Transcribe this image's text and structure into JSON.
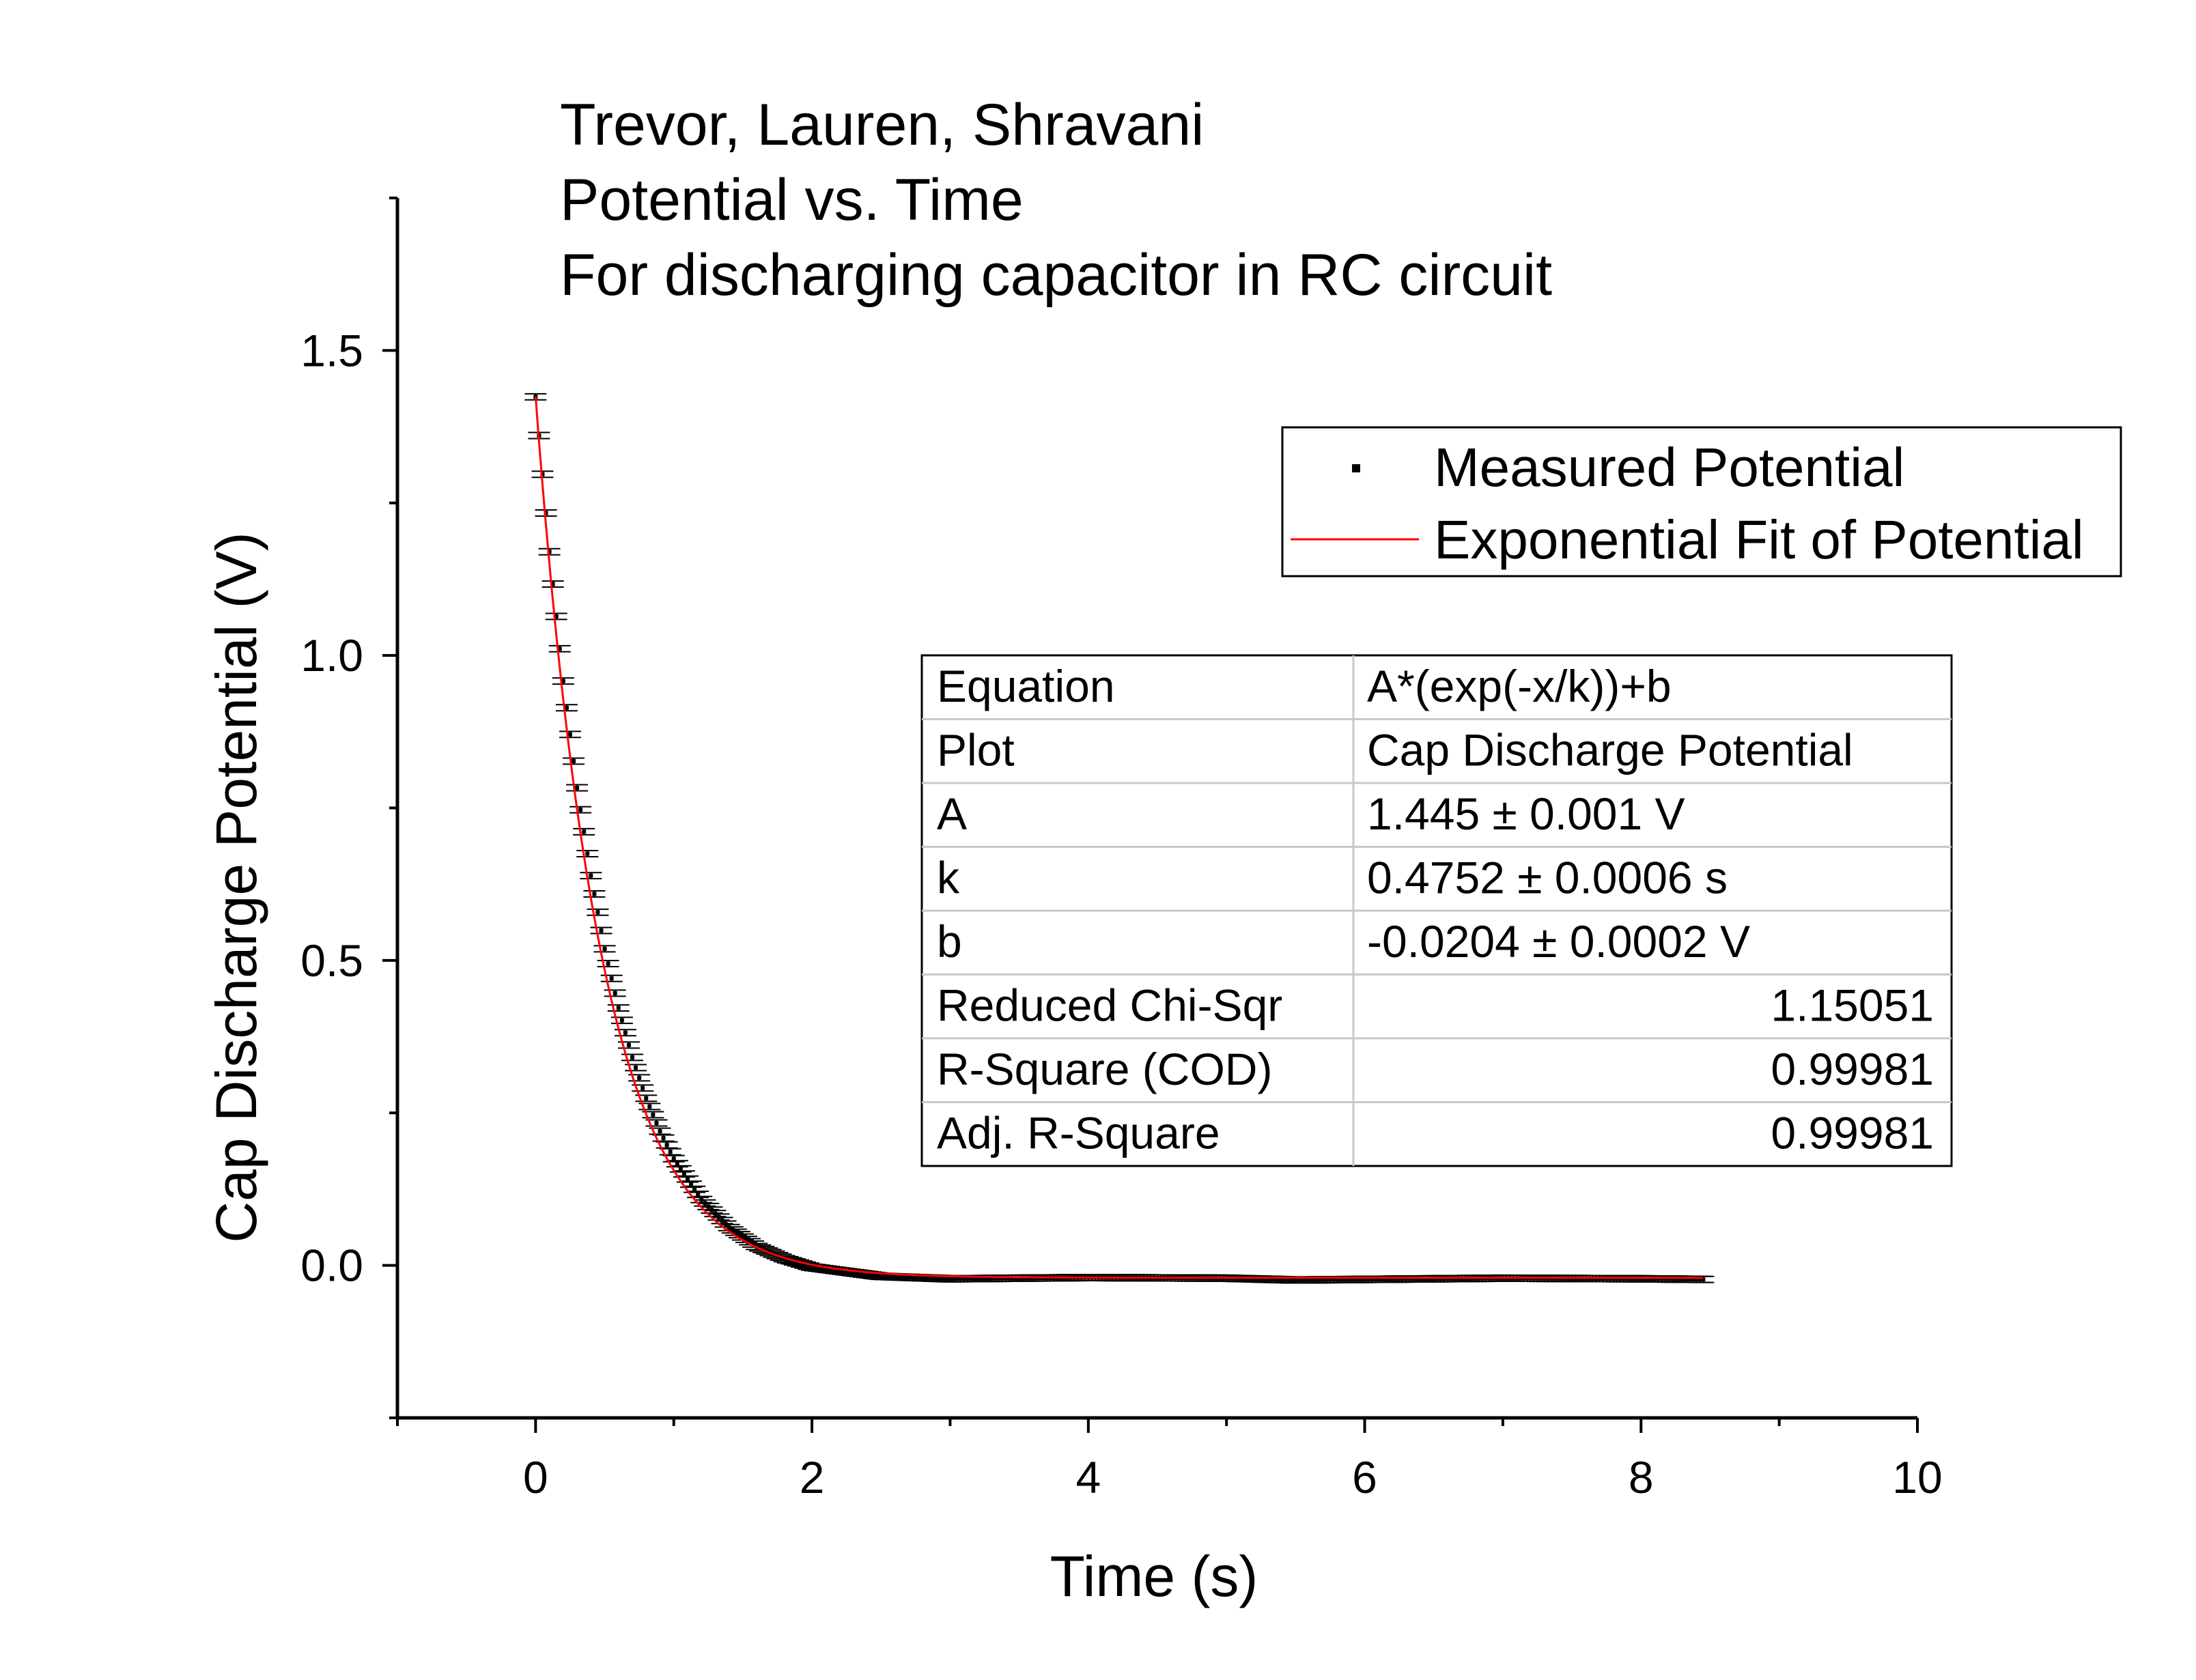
{
  "chart_data": {
    "type": "scatter",
    "title_lines": [
      "Trevor, Lauren, Shravani",
      "Potential vs. Time",
      "For discharging capacitor in RC circuit"
    ],
    "xlabel": "Time (s)",
    "ylabel": "Cap Discharge Potential (V)",
    "xlim": [
      -1,
      10
    ],
    "ylim": [
      -0.25,
      1.75
    ],
    "x_ticks": [
      0,
      2,
      4,
      6,
      8,
      10
    ],
    "x_tick_labels": [
      "0",
      "2",
      "4",
      "6",
      "8",
      "10"
    ],
    "y_ticks": [
      0.0,
      0.5,
      1.0,
      1.5
    ],
    "y_tick_labels": [
      "0.0",
      "0.5",
      "1.0",
      "1.5"
    ],
    "grid": false,
    "legend_position": "top-right",
    "series": [
      {
        "name": "Measured Potential",
        "kind": "points-with-error-bars",
        "color": "#000000",
        "x_start": 0,
        "x_end": 8.45,
        "x_step": 0.025,
        "y_error": 0.005,
        "points": [
          [
            0.0,
            1.424
          ],
          [
            0.1,
            1.17
          ],
          [
            0.2,
            0.958
          ],
          [
            0.3,
            0.783
          ],
          [
            0.4,
            0.639
          ],
          [
            0.5,
            0.519
          ],
          [
            0.6,
            0.422
          ],
          [
            0.7,
            0.341
          ],
          [
            0.8,
            0.274
          ],
          [
            0.9,
            0.22
          ],
          [
            1.0,
            0.175
          ],
          [
            1.2,
            0.108
          ],
          [
            1.4,
            0.062
          ],
          [
            1.6,
            0.031
          ],
          [
            1.8,
            0.011
          ],
          [
            2.0,
            -0.003
          ],
          [
            2.5,
            -0.018
          ],
          [
            3.0,
            -0.022
          ],
          [
            4.0,
            -0.02
          ],
          [
            5.0,
            -0.021
          ],
          [
            5.5,
            -0.024
          ],
          [
            6.0,
            -0.023
          ],
          [
            7.0,
            -0.021
          ],
          [
            8.0,
            -0.022
          ],
          [
            8.45,
            -0.023
          ]
        ]
      },
      {
        "name": "Exponential Fit of Potential",
        "kind": "fit-line",
        "color": "#ff0000",
        "model": "A*(exp(-x/k))+b",
        "A": 1.445,
        "k": 0.4752,
        "b": -0.0204,
        "x_start": 0,
        "x_end": 8.45
      }
    ],
    "fit_table": {
      "rows": [
        {
          "label": "Equation",
          "value": "A*(exp(-x/k))+b"
        },
        {
          "label": "Plot",
          "value": "Cap Discharge Potential"
        },
        {
          "label": "A",
          "value": "1.445 ± 0.001 V"
        },
        {
          "label": "k",
          "value": "0.4752 ± 0.0006 s"
        },
        {
          "label": "b",
          "value": "-0.0204 ± 0.0002 V"
        },
        {
          "label": "Reduced Chi-Sqr",
          "value": "1.15051"
        },
        {
          "label": "R-Square (COD)",
          "value": "0.99981"
        },
        {
          "label": "Adj. R-Square",
          "value": "0.99981"
        }
      ]
    }
  }
}
